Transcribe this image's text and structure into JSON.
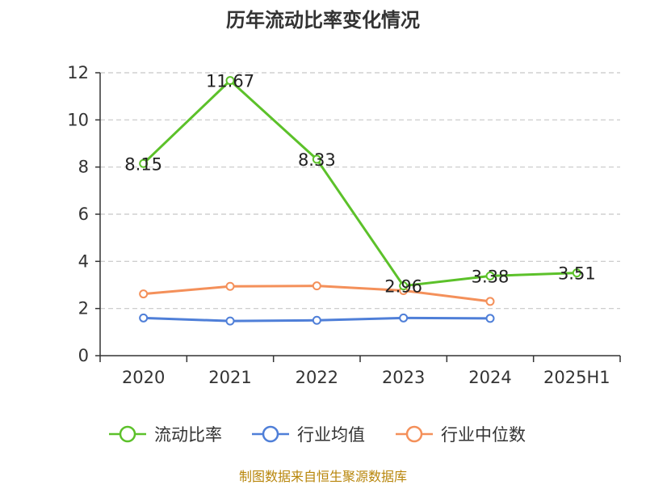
{
  "chart_data": {
    "type": "line",
    "title": "历年流动比率变化情况",
    "categories": [
      "2020",
      "2021",
      "2022",
      "2023",
      "2024",
      "2025H1"
    ],
    "ylim": [
      0,
      12
    ],
    "yticks": [
      0,
      2,
      4,
      6,
      8,
      10,
      12
    ],
    "grid": true,
    "legend_position": "bottom",
    "series": [
      {
        "name": "流动比率",
        "color": "#5cc12a",
        "values": [
          8.15,
          11.67,
          8.33,
          2.96,
          3.38,
          3.51
        ],
        "labels": [
          "8.15",
          "11.67",
          "8.33",
          "2.96",
          "3.38",
          "3.51"
        ]
      },
      {
        "name": "行业均值",
        "color": "#4f7fd8",
        "values": [
          1.6,
          1.47,
          1.5,
          1.6,
          1.58,
          null
        ]
      },
      {
        "name": "行业中位数",
        "color": "#f4905a",
        "values": [
          2.62,
          2.94,
          2.96,
          2.76,
          2.3,
          null
        ]
      }
    ],
    "source": "制图数据来自恒生聚源数据库"
  }
}
